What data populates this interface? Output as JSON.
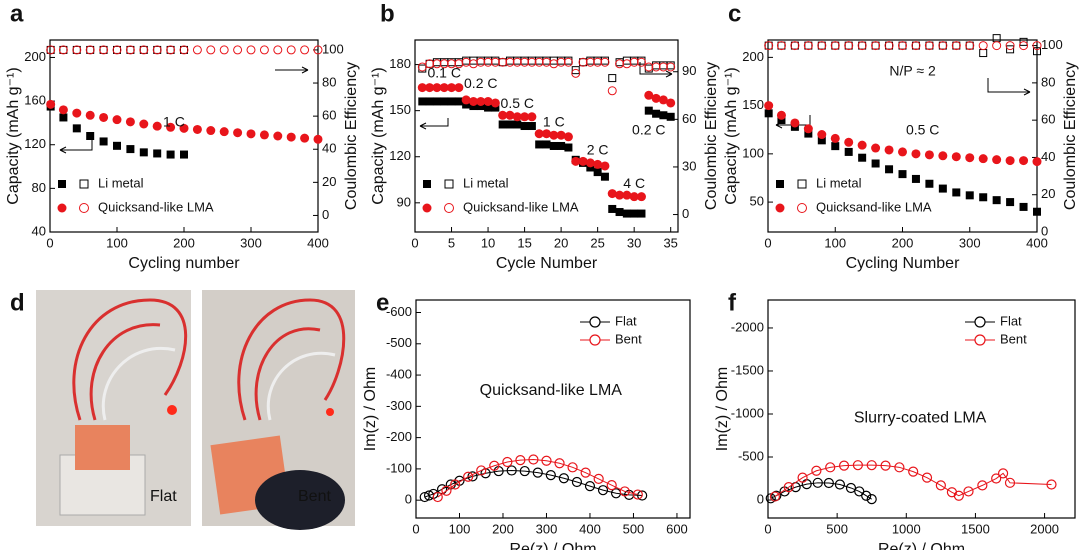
{
  "chart_data": [
    {
      "type": "scatter",
      "label": "a",
      "xlabel": "Cycling number",
      "ylabel": "Capacity (mAh g⁻¹)",
      "y2label": "Coulombic Efficiency",
      "xlim": [
        0,
        400
      ],
      "xticks": [
        0,
        100,
        200,
        300,
        400
      ],
      "ylim": [
        40,
        216
      ],
      "yticks": [
        40,
        80,
        120,
        160,
        200
      ],
      "y2lim": [
        -10,
        106
      ],
      "y2ticks": [
        0,
        20,
        40,
        60,
        80,
        100
      ],
      "legend": "lower left",
      "annotations": [
        "1 C"
      ],
      "x": [
        1,
        20,
        40,
        60,
        80,
        100,
        120,
        140,
        160,
        180,
        200,
        220,
        240,
        260,
        280,
        300,
        320,
        340,
        360,
        380,
        400
      ],
      "series": [
        {
          "name": "Li metal",
          "color": "#000000",
          "marker": "square",
          "values": [
            155,
            145,
            135,
            128,
            123,
            119,
            116,
            113,
            112,
            111,
            111,
            null,
            null,
            null,
            null,
            null,
            null,
            null,
            null,
            null,
            null
          ],
          "efficiency": [
            100,
            100,
            100,
            100,
            100,
            100,
            100,
            100,
            100,
            100,
            100,
            null,
            null,
            null,
            null,
            null,
            null,
            null,
            null,
            null,
            null
          ]
        },
        {
          "name": "Quicksand-like LMA",
          "color": "#e8151b",
          "marker": "circle",
          "values": [
            157,
            152,
            149,
            147,
            145,
            143,
            141,
            139,
            137,
            136,
            135,
            134,
            133,
            132,
            131,
            130,
            129,
            128,
            127,
            126,
            125
          ],
          "efficiency": [
            100,
            100,
            100,
            100,
            100,
            100,
            100,
            100,
            100,
            100,
            100,
            100,
            100,
            100,
            100,
            100,
            100,
            100,
            100,
            100,
            100
          ]
        }
      ]
    },
    {
      "type": "scatter",
      "label": "b",
      "xlabel": "Cycle Number",
      "ylabel": "Capacity (mAh g⁻¹)",
      "y2label": "Coulombic Efficiency",
      "xlim": [
        0,
        36
      ],
      "xticks": [
        0,
        5,
        10,
        15,
        20,
        25,
        30,
        35
      ],
      "ylim": [
        71,
        196
      ],
      "yticks": [
        90,
        120,
        150,
        180
      ],
      "y2lim": [
        -11,
        110
      ],
      "y2ticks": [
        0,
        30,
        60,
        90
      ],
      "legend": "lower left",
      "annotations": [
        "0.1 C",
        "0.2 C",
        "0.5 C",
        "1 C",
        "2 C",
        "4 C",
        "0.2 C"
      ],
      "x": [
        1,
        2,
        3,
        4,
        5,
        6,
        7,
        8,
        9,
        10,
        11,
        12,
        13,
        14,
        15,
        16,
        17,
        18,
        19,
        20,
        21,
        22,
        23,
        24,
        25,
        26,
        27,
        28,
        29,
        30,
        31,
        32,
        33,
        34,
        35
      ],
      "series": [
        {
          "name": "Li metal",
          "color": "#000000",
          "marker": "square",
          "values": [
            156,
            156,
            156,
            156,
            156,
            156,
            154,
            153,
            153,
            152,
            152,
            141,
            141,
            141,
            140,
            140,
            128,
            128,
            127,
            127,
            126,
            118,
            116,
            113,
            110,
            107,
            86,
            84,
            83,
            83,
            83,
            150,
            148,
            147,
            146
          ],
          "efficiency": [
            92,
            95,
            96,
            96,
            96,
            96,
            97,
            97,
            97,
            97,
            97,
            96,
            97,
            97,
            97,
            97,
            97,
            97,
            97,
            97,
            97,
            91,
            96,
            97,
            97,
            97,
            86,
            96,
            97,
            97,
            97,
            92,
            94,
            94,
            94
          ]
        },
        {
          "name": "Quicksand-like LMA",
          "color": "#e8151b",
          "marker": "circle",
          "values": [
            165,
            165,
            165,
            165,
            165,
            165,
            157,
            156,
            156,
            156,
            155,
            147,
            147,
            146,
            146,
            146,
            135,
            135,
            134,
            134,
            133,
            117,
            117,
            116,
            115,
            114,
            96,
            95,
            95,
            94,
            94,
            160,
            158,
            157,
            155
          ],
          "efficiency": [
            93,
            95,
            95,
            95,
            95,
            95,
            96,
            95,
            96,
            96,
            96,
            96,
            96,
            96,
            96,
            96,
            96,
            96,
            95,
            96,
            96,
            89,
            96,
            96,
            96,
            96,
            78,
            95,
            95,
            96,
            96,
            93,
            93,
            93,
            93
          ]
        }
      ]
    },
    {
      "type": "scatter",
      "label": "c",
      "xlabel": "Cycling Number",
      "ylabel": "Capacity (mAh g⁻¹)",
      "y2label": "Coulombic Efficiency",
      "xlim": [
        0,
        400
      ],
      "xticks": [
        0,
        100,
        200,
        300,
        400
      ],
      "ylim": [
        19,
        218
      ],
      "yticks": [
        50,
        100,
        150,
        200
      ],
      "y2lim": [
        0,
        103
      ],
      "y2ticks": [
        0,
        20,
        40,
        60,
        80,
        100
      ],
      "legend": "lower left",
      "annotations": [
        "N/P ≈ 2",
        "0.5 C"
      ],
      "x": [
        1,
        20,
        40,
        60,
        80,
        100,
        120,
        140,
        160,
        180,
        200,
        220,
        240,
        260,
        280,
        300,
        320,
        340,
        360,
        380,
        400
      ],
      "series": [
        {
          "name": "Li metal",
          "color": "#000000",
          "marker": "square",
          "values": [
            142,
            135,
            128,
            121,
            114,
            108,
            102,
            96,
            90,
            84,
            79,
            74,
            69,
            64,
            60,
            57,
            55,
            52,
            50,
            45,
            40
          ],
          "efficiency": [
            100,
            100,
            100,
            100,
            100,
            100,
            100,
            100,
            100,
            100,
            100,
            100,
            100,
            100,
            100,
            100,
            96,
            104,
            98,
            102,
            97
          ]
        },
        {
          "name": "Quicksand-like LMA",
          "color": "#e8151b",
          "marker": "circle",
          "values": [
            150,
            140,
            132,
            126,
            120,
            116,
            112,
            109,
            106,
            104,
            102,
            100,
            99,
            98,
            97,
            96,
            95,
            94,
            93,
            93,
            92
          ],
          "efficiency": [
            100,
            100,
            100,
            100,
            100,
            100,
            100,
            100,
            100,
            100,
            100,
            100,
            100,
            100,
            100,
            100,
            100,
            100,
            100,
            100,
            100
          ]
        }
      ]
    },
    {
      "type": "line",
      "label": "e",
      "xlabel": "Re(z) / Ohm",
      "ylabel": "Im(z) / Ohm",
      "xlim": [
        0,
        630
      ],
      "xticks": [
        0,
        100,
        200,
        300,
        400,
        500,
        600
      ],
      "ylim": [
        57,
        -640
      ],
      "yticks": [
        0,
        -100,
        -200,
        -300,
        -400,
        -500,
        -600
      ],
      "legend": "upper right",
      "annotations": [
        "Quicksand-like LMA"
      ],
      "series": [
        {
          "name": "Flat",
          "color": "#000000",
          "x": [
            20,
            30,
            40,
            60,
            80,
            100,
            130,
            160,
            190,
            220,
            250,
            280,
            310,
            340,
            370,
            400,
            430,
            460,
            490,
            520
          ],
          "values": [
            -10,
            -15,
            -20,
            -35,
            -50,
            -62,
            -76,
            -86,
            -93,
            -95,
            -93,
            -88,
            -80,
            -70,
            -58,
            -45,
            -32,
            -22,
            -17,
            -15
          ]
        },
        {
          "name": "Bent",
          "color": "#e8151b",
          "x": [
            50,
            70,
            90,
            120,
            150,
            180,
            210,
            240,
            270,
            300,
            330,
            360,
            390,
            420,
            450,
            480,
            510
          ],
          "values": [
            -10,
            -30,
            -50,
            -75,
            -95,
            -110,
            -122,
            -128,
            -130,
            -126,
            -118,
            -105,
            -88,
            -68,
            -48,
            -28,
            -18
          ]
        }
      ]
    },
    {
      "type": "line",
      "label": "f",
      "xlabel": "Re(z) / Ohm",
      "ylabel": "Im(z) / Ohm",
      "xlim": [
        0,
        2220
      ],
      "xticks": [
        0,
        500,
        1000,
        1500,
        2000
      ],
      "ylim": [
        209,
        -2325
      ],
      "yticks": [
        0,
        -500,
        -1000,
        -1500,
        -2000
      ],
      "legend": "upper right",
      "annotations": [
        "Slurry-coated LMA"
      ],
      "series": [
        {
          "name": "Flat",
          "color": "#000000",
          "x": [
            20,
            60,
            120,
            200,
            280,
            360,
            440,
            520,
            600,
            660,
            710,
            750
          ],
          "values": [
            -20,
            -50,
            -100,
            -150,
            -185,
            -200,
            -198,
            -180,
            -140,
            -100,
            -50,
            -10
          ]
        },
        {
          "name": "Bent",
          "color": "#e8151b",
          "x": [
            50,
            150,
            250,
            350,
            450,
            550,
            650,
            750,
            850,
            950,
            1050,
            1150,
            1250,
            1330,
            1380,
            1450,
            1550,
            1650,
            1700,
            1750,
            2050
          ],
          "values": [
            -40,
            -150,
            -260,
            -340,
            -380,
            -400,
            -405,
            -405,
            -400,
            -380,
            -330,
            -260,
            -170,
            -90,
            -50,
            -100,
            -170,
            -250,
            -310,
            -200,
            -180
          ]
        }
      ]
    }
  ],
  "photos": {
    "label": "d",
    "captions": [
      "Flat",
      "Bent"
    ]
  }
}
